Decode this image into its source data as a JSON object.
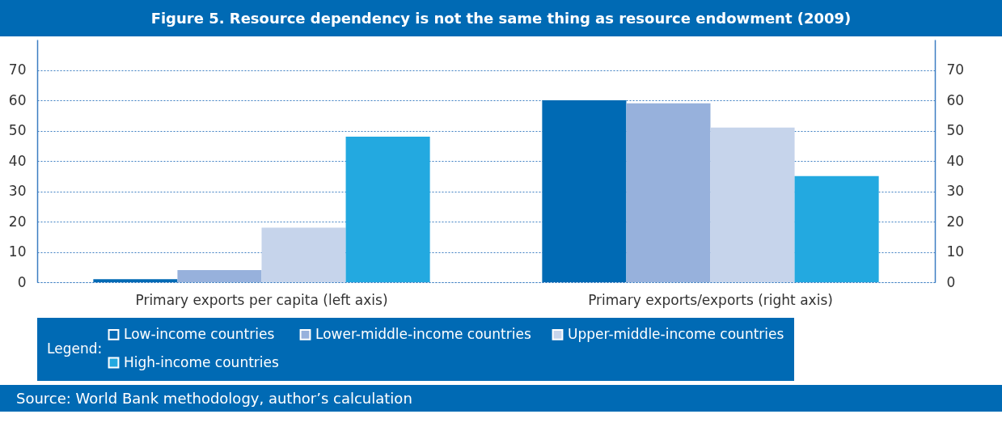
{
  "chart_data": {
    "type": "bar",
    "title": "Figure 5. Resource dependency is not the same thing as resource endowment (2009)",
    "categories": [
      "Primary exports per capita (left axis)",
      "Primary exports/exports (right axis)"
    ],
    "series": [
      {
        "name": "Low-income countries",
        "color": "#006ab4",
        "values": [
          1,
          null
        ]
      },
      {
        "name": "Lower-middle-income countries",
        "color": "#97b1dc",
        "values": [
          4,
          null
        ]
      },
      {
        "name": "Upper-middle-income countries",
        "color": "#c6d4eb",
        "values": [
          18,
          null
        ]
      },
      {
        "name": "High-income countries",
        "color": "#23a9e0",
        "values": [
          48,
          null
        ]
      },
      {
        "color": "#006ab4",
        "values": [
          null,
          60
        ],
        "axis": "y2"
      },
      {
        "color": "#97b1dc",
        "values": [
          null,
          59
        ],
        "axis": "y2"
      },
      {
        "color": "#c6d4eb",
        "values": [
          null,
          51
        ],
        "axis": "y2"
      },
      {
        "color": "#23a9e0",
        "values": [
          null,
          35
        ],
        "axis": "y2"
      }
    ],
    "ylim": [
      0,
      80
    ],
    "yticks": [
      0,
      10,
      20,
      30,
      40,
      50,
      60,
      70
    ],
    "y2lim": [
      0,
      80
    ],
    "y2ticks": [
      0,
      10,
      20,
      30,
      40,
      50,
      60,
      70
    ],
    "grid": "y",
    "legend": "bottom",
    "legend_title": "Legend:",
    "annotations": [
      "Source: World Bank methodology, author’s calculation"
    ]
  }
}
